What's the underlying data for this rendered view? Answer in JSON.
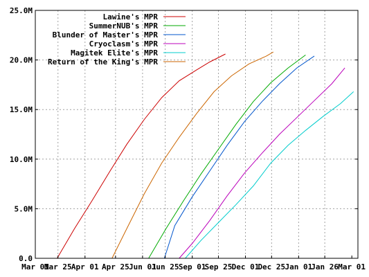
{
  "chart_data": {
    "type": "line",
    "title": "",
    "xlabel": "",
    "ylabel": "",
    "ylim": [
      0,
      25
    ],
    "y_unit": "M",
    "y_ticks": [
      0,
      5,
      10,
      15,
      20,
      25
    ],
    "y_tick_labels": [
      "0.0",
      "5.0M",
      "10.0M",
      "15.0M",
      "20.0M",
      "25.0M"
    ],
    "xlim": [
      0,
      370
    ],
    "x_ticks": [
      0,
      26,
      57,
      92,
      123,
      149,
      180,
      210,
      241,
      271,
      302,
      332,
      363
    ],
    "x_tick_labels": [
      "Mar 01",
      "Mar 25",
      "Apr 01",
      "Apr 25",
      "Jun 01",
      "Jun 25",
      "Sep 01",
      "Sep 25",
      "Dec 01",
      "Dec 25",
      "Jan 01",
      "Jan 26",
      "Mar 01"
    ],
    "grid": true,
    "legend_position": "top-right",
    "series": [
      {
        "name": "Lawine's MPR",
        "color": "#cc0000",
        "x": [
          25,
          45,
          65,
          85,
          105,
          125,
          145,
          165,
          185,
          200,
          218
        ],
        "y": [
          0,
          3.0,
          5.8,
          8.7,
          11.5,
          14.0,
          16.2,
          17.9,
          19.0,
          19.8,
          20.6
        ]
      },
      {
        "name": "SummerNUB's MPR",
        "color": "#00aa00",
        "x": [
          130,
          150,
          170,
          190,
          210,
          230,
          250,
          270,
          290,
          310
        ],
        "y": [
          0,
          3.0,
          5.8,
          8.5,
          11.0,
          13.5,
          15.8,
          17.7,
          19.2,
          20.5
        ]
      },
      {
        "name": "Blunder of Master's MPR",
        "color": "#0055cc",
        "x": [
          148,
          160,
          180,
          200,
          220,
          240,
          260,
          280,
          300,
          320
        ],
        "y": [
          0,
          3.3,
          6.2,
          8.8,
          11.4,
          13.8,
          15.8,
          17.6,
          19.2,
          20.4
        ]
      },
      {
        "name": "Cryoclasm's MPR",
        "color": "#bb00bb",
        "x": [
          165,
          180,
          200,
          220,
          240,
          260,
          280,
          300,
          320,
          340,
          355
        ],
        "y": [
          0,
          1.5,
          3.8,
          6.3,
          8.6,
          10.6,
          12.5,
          14.2,
          15.9,
          17.6,
          19.2
        ]
      },
      {
        "name": "Magitek Elite's MPR",
        "color": "#00cccc",
        "x": [
          172,
          190,
          210,
          230,
          250,
          270,
          290,
          310,
          330,
          350,
          365
        ],
        "y": [
          0,
          1.8,
          3.6,
          5.4,
          7.3,
          9.6,
          11.4,
          12.9,
          14.3,
          15.6,
          16.8
        ]
      },
      {
        "name": "Return of the King's MPR",
        "color": "#cc6600",
        "x": [
          88,
          105,
          125,
          145,
          165,
          185,
          205,
          225,
          245,
          265,
          273
        ],
        "y": [
          0,
          3.0,
          6.5,
          9.6,
          12.2,
          14.6,
          16.8,
          18.4,
          19.6,
          20.4,
          20.8
        ]
      }
    ]
  }
}
